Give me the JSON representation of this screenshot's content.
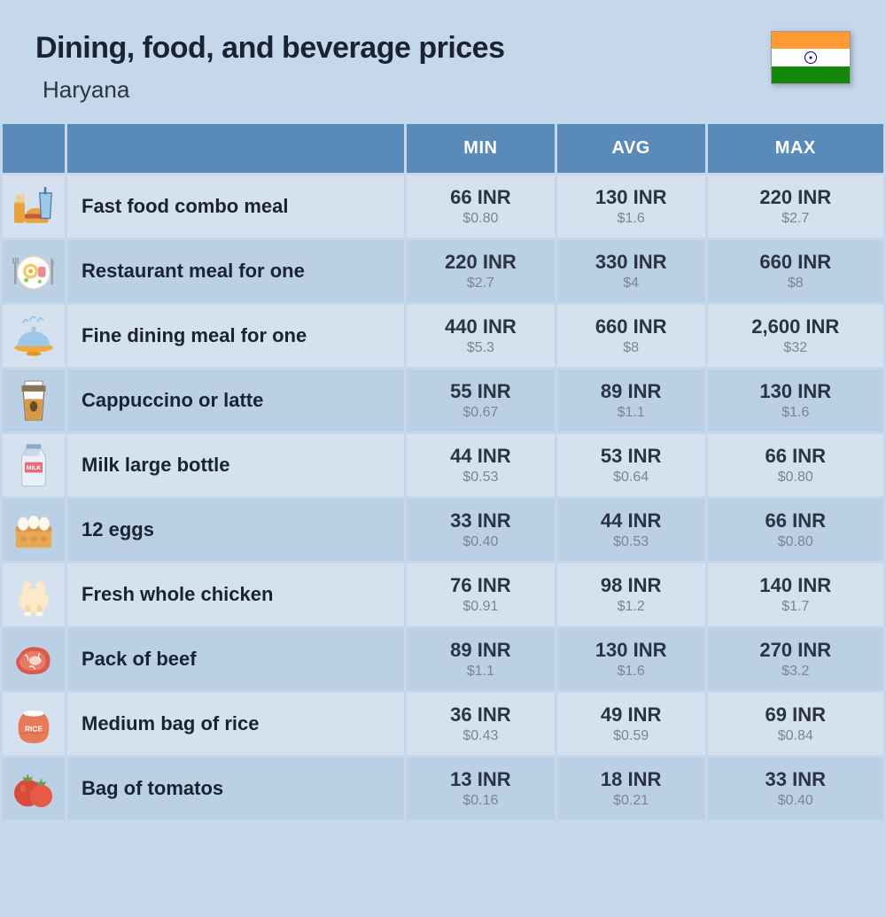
{
  "header": {
    "title": "Dining, food, and beverage prices",
    "subtitle": "Haryana"
  },
  "columns": {
    "min": "MIN",
    "avg": "AVG",
    "max": "MAX"
  },
  "colors": {
    "page_bg": "#c5d7eb",
    "header_bg": "#5a8bb8",
    "row_odd": "#d5e1ef",
    "row_even": "#bcd0e5",
    "text_dark": "#1a2332",
    "text_muted": "#7a8594"
  },
  "rows": [
    {
      "icon": "fastfood",
      "label": "Fast food combo meal",
      "min_inr": "66 INR",
      "min_usd": "$0.80",
      "avg_inr": "130 INR",
      "avg_usd": "$1.6",
      "max_inr": "220 INR",
      "max_usd": "$2.7"
    },
    {
      "icon": "restaurant",
      "label": "Restaurant meal for one",
      "min_inr": "220 INR",
      "min_usd": "$2.7",
      "avg_inr": "330 INR",
      "avg_usd": "$4",
      "max_inr": "660 INR",
      "max_usd": "$8"
    },
    {
      "icon": "finedining",
      "label": "Fine dining meal for one",
      "min_inr": "440 INR",
      "min_usd": "$5.3",
      "avg_inr": "660 INR",
      "avg_usd": "$8",
      "max_inr": "2,600 INR",
      "max_usd": "$32"
    },
    {
      "icon": "coffee",
      "label": "Cappuccino or latte",
      "min_inr": "55 INR",
      "min_usd": "$0.67",
      "avg_inr": "89 INR",
      "avg_usd": "$1.1",
      "max_inr": "130 INR",
      "max_usd": "$1.6"
    },
    {
      "icon": "milk",
      "label": "Milk large bottle",
      "min_inr": "44 INR",
      "min_usd": "$0.53",
      "avg_inr": "53 INR",
      "avg_usd": "$0.64",
      "max_inr": "66 INR",
      "max_usd": "$0.80"
    },
    {
      "icon": "eggs",
      "label": "12 eggs",
      "min_inr": "33 INR",
      "min_usd": "$0.40",
      "avg_inr": "44 INR",
      "avg_usd": "$0.53",
      "max_inr": "66 INR",
      "max_usd": "$0.80"
    },
    {
      "icon": "chicken",
      "label": "Fresh whole chicken",
      "min_inr": "76 INR",
      "min_usd": "$0.91",
      "avg_inr": "98 INR",
      "avg_usd": "$1.2",
      "max_inr": "140 INR",
      "max_usd": "$1.7"
    },
    {
      "icon": "beef",
      "label": "Pack of beef",
      "min_inr": "89 INR",
      "min_usd": "$1.1",
      "avg_inr": "130 INR",
      "avg_usd": "$1.6",
      "max_inr": "270 INR",
      "max_usd": "$3.2"
    },
    {
      "icon": "rice",
      "label": "Medium bag of rice",
      "min_inr": "36 INR",
      "min_usd": "$0.43",
      "avg_inr": "49 INR",
      "avg_usd": "$0.59",
      "max_inr": "69 INR",
      "max_usd": "$0.84"
    },
    {
      "icon": "tomato",
      "label": "Bag of tomatos",
      "min_inr": "13 INR",
      "min_usd": "$0.16",
      "avg_inr": "18 INR",
      "avg_usd": "$0.21",
      "max_inr": "33 INR",
      "max_usd": "$0.40"
    }
  ]
}
